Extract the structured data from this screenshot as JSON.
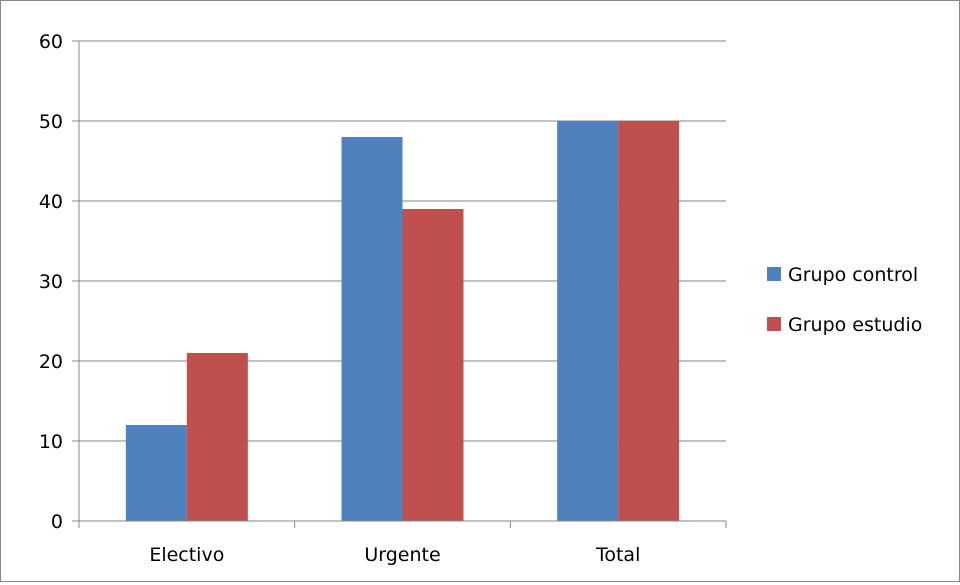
{
  "chart_data": {
    "type": "bar",
    "categories": [
      "Electivo",
      "Urgente",
      "Total"
    ],
    "series": [
      {
        "name": "Grupo control",
        "values": [
          12,
          48,
          50
        ],
        "color": "#4F81BD"
      },
      {
        "name": "Grupo estudio",
        "values": [
          21,
          39,
          50
        ],
        "color": "#C0504D"
      }
    ],
    "ylim": [
      0,
      60
    ],
    "yticks": [
      0,
      10,
      20,
      30,
      40,
      50,
      60
    ],
    "grid": true,
    "legend_position": "right",
    "title": "",
    "xlabel": "",
    "ylabel": ""
  }
}
